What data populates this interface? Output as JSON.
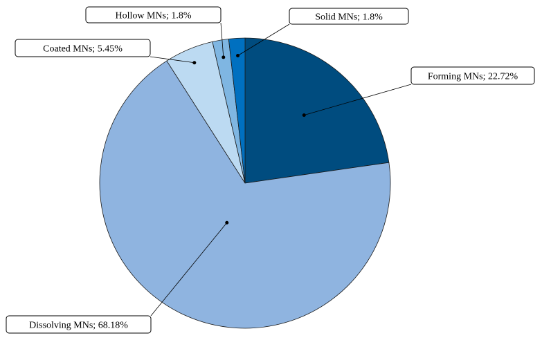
{
  "chart_data": {
    "type": "pie",
    "title": "",
    "start_angle": "12 o'clock, clockwise",
    "slices": [
      {
        "label": "Forming MNs; 22.72%",
        "name": "Forming MNs",
        "value": 22.72,
        "color": "#004c7f"
      },
      {
        "label": "Dissolving MNs; 68.18%",
        "name": "Dissolving MNs",
        "value": 68.18,
        "color": "#8fb4e0"
      },
      {
        "label": "Coated MNs; 5.45%",
        "name": "Coated MNs",
        "value": 5.45,
        "color": "#bcdaf2"
      },
      {
        "label": "Hollow MNs; 1.8%",
        "name": "Hollow MNs",
        "value": 1.8,
        "color": "#7fb6e2"
      },
      {
        "label": "Solid MNs; 1.8%",
        "name": "Solid MNs",
        "value": 1.8,
        "color": "#0070c0"
      }
    ]
  }
}
